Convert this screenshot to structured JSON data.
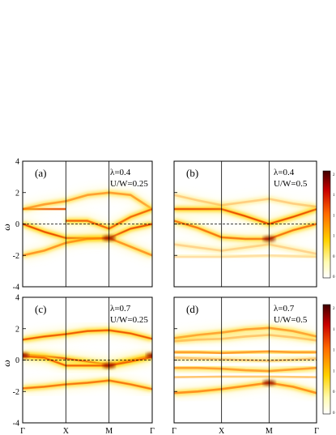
{
  "chart_data": [
    {
      "type": "heatmap",
      "panel": "(a)",
      "label": "(a)",
      "params": [
        "λ=0.4",
        "U/W=0.25"
      ],
      "ylabel": "ω",
      "ylim": [
        -4,
        4
      ],
      "yticks": [
        "4",
        "2",
        "0",
        "-2",
        "-4"
      ],
      "xticks": [
        "Γ",
        "X",
        "M",
        "Γ"
      ],
      "fermi_level": 0,
      "bands": [
        {
          "points": [
            [
              0,
              0.95
            ],
            [
              0.5,
              0.95
            ],
            [
              1,
              0.95
            ]
          ],
          "w": 0.9
        },
        {
          "points": [
            [
              0,
              0.95
            ],
            [
              0.5,
              1.25
            ],
            [
              1,
              1.45
            ],
            [
              1.5,
              1.85
            ],
            [
              2,
              2.0
            ],
            [
              2.5,
              1.85
            ],
            [
              3,
              0.95
            ]
          ],
          "w": 0.55
        },
        {
          "points": [
            [
              0,
              0.0
            ],
            [
              0.5,
              -0.5
            ],
            [
              1,
              -0.9
            ],
            [
              1.5,
              -0.9
            ],
            [
              2,
              -0.9
            ],
            [
              2.5,
              -0.3
            ],
            [
              3,
              0.0
            ]
          ],
          "w": 0.85
        },
        {
          "points": [
            [
              1,
              0.2
            ],
            [
              1.5,
              0.2
            ],
            [
              2,
              -0.3
            ],
            [
              2.5,
              0.45
            ],
            [
              3,
              0.95
            ]
          ],
          "w": 0.75
        },
        {
          "points": [
            [
              0,
              -2.0
            ],
            [
              0.5,
              -1.7
            ],
            [
              1,
              -1.2
            ],
            [
              1.5,
              -0.95
            ],
            [
              2,
              -0.9
            ],
            [
              2.5,
              -1.45
            ],
            [
              3,
              -2.0
            ]
          ],
          "w": 0.6
        }
      ],
      "hot_spots": [
        {
          "x": 2,
          "y": -0.9
        }
      ]
    },
    {
      "type": "heatmap",
      "panel": "(b)",
      "label": "(b)",
      "params": [
        "λ=0.4",
        "U/W=0.5"
      ],
      "ylim": [
        -4,
        4
      ],
      "xticks": [
        "Γ",
        "X",
        "M",
        "Γ"
      ],
      "fermi_level": 0,
      "bands": [
        {
          "points": [
            [
              0,
              0.95
            ],
            [
              0.5,
              0.95
            ],
            [
              1,
              0.95
            ],
            [
              1.5,
              0.5
            ],
            [
              2,
              0.0
            ],
            [
              2.5,
              0.45
            ],
            [
              3,
              0.95
            ]
          ],
          "w": 0.85
        },
        {
          "points": [
            [
              0,
              0.2
            ],
            [
              0.5,
              -0.25
            ],
            [
              1,
              -0.85
            ],
            [
              1.5,
              -0.95
            ],
            [
              2,
              -0.95
            ],
            [
              2.5,
              -0.4
            ],
            [
              3,
              0.0
            ]
          ],
          "w": 0.7
        },
        {
          "points": [
            [
              0,
              1.85
            ],
            [
              0.5,
              1.5
            ],
            [
              1,
              1.2
            ],
            [
              1.5,
              1.4
            ],
            [
              2,
              1.6
            ],
            [
              2.5,
              1.3
            ],
            [
              3,
              1.1
            ]
          ],
          "w": 0.25
        },
        {
          "points": [
            [
              0,
              -1.3
            ],
            [
              0.5,
              -1.5
            ],
            [
              1,
              -1.7
            ],
            [
              1.5,
              -1.5
            ],
            [
              2,
              -1.3
            ],
            [
              2.5,
              -1.6
            ],
            [
              3,
              -1.9
            ]
          ],
          "w": 0.22
        },
        {
          "points": [
            [
              0,
              -2.1
            ],
            [
              1,
              -2.1
            ],
            [
              2,
              -2.0
            ],
            [
              3,
              -2.1
            ]
          ],
          "w": 0.15
        }
      ],
      "hot_spots": [
        {
          "x": 2,
          "y": -0.95
        }
      ]
    },
    {
      "type": "heatmap",
      "panel": "(c)",
      "label": "(c)",
      "params": [
        "λ=0.7",
        "U/W=0.25"
      ],
      "ylabel": "ω",
      "ylim": [
        -4,
        4
      ],
      "yticks": [
        "4",
        "2",
        "0",
        "-2",
        "-4"
      ],
      "xticks": [
        "Γ",
        "X",
        "M",
        "Γ"
      ],
      "fermi_level": 0,
      "bands": [
        {
          "points": [
            [
              0,
              1.3
            ],
            [
              0.5,
              1.5
            ],
            [
              1,
              1.65
            ],
            [
              1.5,
              1.85
            ],
            [
              2,
              1.9
            ],
            [
              2.5,
              1.7
            ],
            [
              3,
              1.35
            ]
          ],
          "w": 0.8
        },
        {
          "points": [
            [
              0,
              0.35
            ],
            [
              0.5,
              0.25
            ],
            [
              1,
              0.1
            ],
            [
              1.5,
              -0.1
            ],
            [
              2,
              -0.3
            ],
            [
              2.5,
              0.0
            ],
            [
              3,
              0.3
            ]
          ],
          "w": 0.85
        },
        {
          "points": [
            [
              0,
              0.25
            ],
            [
              0.5,
              0.15
            ],
            [
              1,
              -0.35
            ],
            [
              1.5,
              -0.35
            ],
            [
              2,
              -0.35
            ],
            [
              2.5,
              -0.1
            ],
            [
              3,
              0.2
            ]
          ],
          "w": 0.75
        },
        {
          "points": [
            [
              0,
              -1.8
            ],
            [
              0.5,
              -1.7
            ],
            [
              1,
              -1.55
            ],
            [
              1.5,
              -1.45
            ],
            [
              2,
              -1.3
            ],
            [
              2.5,
              -1.55
            ],
            [
              3,
              -1.85
            ]
          ],
          "w": 0.7
        }
      ],
      "hot_spots": [
        {
          "x": 2,
          "y": -0.35
        },
        {
          "x": 3,
          "y": 0.3
        },
        {
          "x": 0,
          "y": 0.3
        }
      ]
    },
    {
      "type": "heatmap",
      "panel": "(d)",
      "label": "(d)",
      "params": [
        "λ=0.7",
        "U/W=0.5"
      ],
      "ylim": [
        -4,
        4
      ],
      "xticks": [
        "Γ",
        "X",
        "M",
        "Γ"
      ],
      "fermi_level": 0,
      "bands": [
        {
          "points": [
            [
              0,
              1.4
            ],
            [
              0.5,
              1.6
            ],
            [
              1,
              1.75
            ],
            [
              1.5,
              1.95
            ],
            [
              2,
              2.05
            ],
            [
              2.5,
              1.85
            ],
            [
              3,
              1.5
            ]
          ],
          "w": 0.55
        },
        {
          "points": [
            [
              0,
              1.2
            ],
            [
              0.5,
              1.3
            ],
            [
              1,
              1.35
            ],
            [
              1.5,
              1.5
            ],
            [
              2,
              1.6
            ],
            [
              2.5,
              1.45
            ],
            [
              3,
              1.25
            ]
          ],
          "w": 0.3
        },
        {
          "points": [
            [
              0,
              0.5
            ],
            [
              0.5,
              0.5
            ],
            [
              1,
              0.45
            ],
            [
              1.5,
              0.5
            ],
            [
              2,
              0.55
            ],
            [
              2.5,
              0.5
            ],
            [
              3,
              0.5
            ]
          ],
          "w": 0.55
        },
        {
          "points": [
            [
              0,
              0.15
            ],
            [
              1,
              0.05
            ],
            [
              2,
              -0.05
            ],
            [
              3,
              0.1
            ]
          ],
          "w": 0.3
        },
        {
          "points": [
            [
              0,
              -0.5
            ],
            [
              0.5,
              -0.5
            ],
            [
              1,
              -0.55
            ],
            [
              1.5,
              -0.65
            ],
            [
              2,
              -0.7
            ],
            [
              2.5,
              -0.6
            ],
            [
              3,
              -0.5
            ]
          ],
          "w": 0.55
        },
        {
          "points": [
            [
              0,
              -1.1
            ],
            [
              1,
              -1.05
            ],
            [
              2,
              -1.05
            ],
            [
              3,
              -1.1
            ]
          ],
          "w": 0.3
        },
        {
          "points": [
            [
              0,
              -2.1
            ],
            [
              0.5,
              -2.0
            ],
            [
              1,
              -1.85
            ],
            [
              1.5,
              -1.65
            ],
            [
              2,
              -1.45
            ],
            [
              2.5,
              -1.7
            ],
            [
              3,
              -2.1
            ]
          ],
          "w": 0.65
        }
      ],
      "hot_spots": [
        {
          "x": 2,
          "y": -1.45
        }
      ]
    }
  ],
  "colorbars": [
    {
      "ticks": [
        "2",
        "1",
        "1",
        "1",
        "0",
        "0"
      ],
      "range": [
        0,
        2
      ]
    },
    {
      "ticks": [
        "2",
        "1",
        "1",
        "1",
        "0",
        "0"
      ],
      "range": [
        0,
        2
      ]
    }
  ],
  "colors": {
    "band_core": "#b00000",
    "band_mid": "#ff6600",
    "band_edge": "#ffd200",
    "band_halo": "#fff27a",
    "fermi_line": "#000000",
    "axis": "#000000"
  }
}
